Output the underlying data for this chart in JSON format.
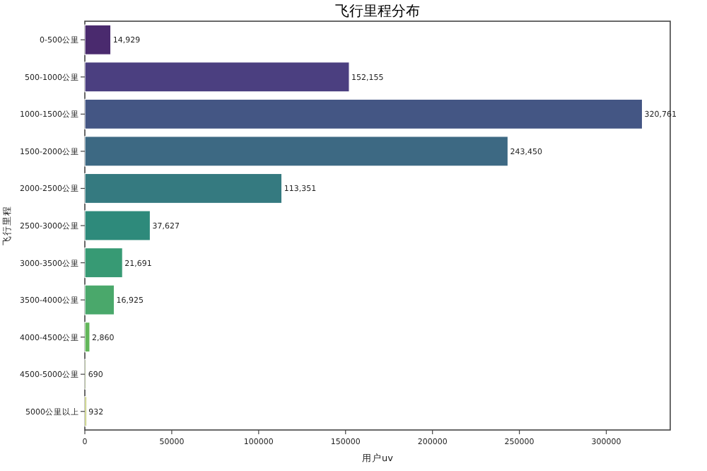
{
  "chart_data": {
    "type": "bar",
    "orientation": "horizontal",
    "title": "飞行里程分布",
    "xlabel": "用户uv",
    "ylabel": "飞行里程",
    "categories": [
      "0-500公里",
      "500-1000公里",
      "1000-1500公里",
      "1500-2000公里",
      "2000-2500公里",
      "2500-3000公里",
      "3000-3500公里",
      "3500-4000公里",
      "4000-4500公里",
      "4500-5000公里",
      "5000公里以上"
    ],
    "values": [
      14929,
      152155,
      320761,
      243450,
      113351,
      37627,
      21691,
      16925,
      2860,
      690,
      932
    ],
    "colors": [
      "#4a2a6e",
      "#4b3f80",
      "#445684",
      "#3d6983",
      "#357a80",
      "#2e8a7b",
      "#379a74",
      "#4aa86b",
      "#62b65a",
      "#58702a",
      "#a8b43a"
    ],
    "xlim": [
      0,
      336800
    ],
    "xticks": [
      0,
      50000,
      100000,
      150000,
      200000,
      250000,
      300000
    ],
    "value_labels": [
      "14,929",
      "152,155",
      "320,761",
      "243,450",
      "113,351",
      "37,627",
      "21,691",
      "16,925",
      "2,860",
      "690",
      "932"
    ]
  }
}
